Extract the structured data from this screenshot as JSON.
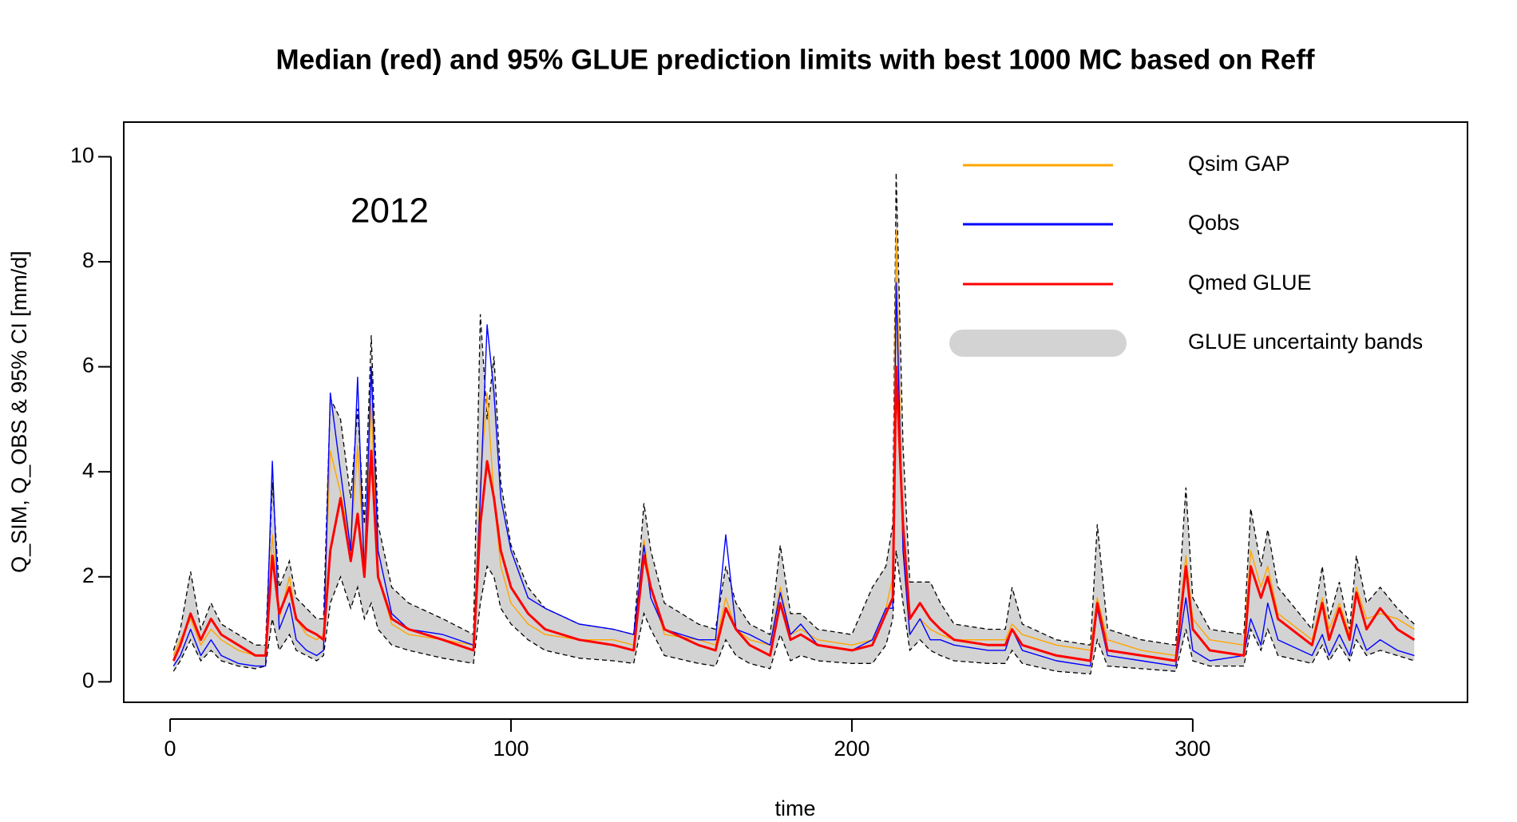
{
  "chart_data": {
    "type": "line",
    "title": "Median (red) and 95% GLUE prediction limits with best 1000 MC based on Reff",
    "x_label": "time",
    "y_label": "Q_SIM, Q_OBS & 95% CI [mm/d]",
    "annotation": "2012",
    "legend": "topright",
    "xlim": [
      -13.6,
      380.6
    ],
    "ylim": [
      -0.39,
      10.66
    ],
    "xticks": [
      0,
      100,
      200,
      300
    ],
    "yticks": [
      0,
      2,
      4,
      6,
      8,
      10
    ],
    "x": [
      1,
      3,
      6,
      9,
      12,
      15,
      20,
      25,
      28,
      30,
      32,
      35,
      37,
      40,
      43,
      45,
      47,
      50,
      53,
      55,
      57,
      59,
      61,
      65,
      70,
      80,
      89,
      91,
      93,
      95,
      97,
      100,
      105,
      110,
      120,
      130,
      136,
      139,
      141,
      145,
      155,
      160,
      163,
      166,
      170,
      176,
      179,
      182,
      185,
      190,
      200,
      206,
      210,
      212,
      213,
      215,
      217,
      220,
      223,
      226,
      230,
      240,
      245,
      247,
      250,
      260,
      270,
      272,
      275,
      285,
      295,
      298,
      300,
      305,
      315,
      317,
      320,
      322,
      325,
      335,
      338,
      340,
      343,
      346,
      348,
      351,
      355,
      360,
      365
    ],
    "series": [
      {
        "name": "Qsim GAP",
        "color": "#ffa500",
        "values": [
          0.5,
          0.8,
          1.2,
          0.7,
          1.0,
          0.8,
          0.6,
          0.5,
          0.5,
          2.8,
          1.2,
          2.0,
          1.2,
          0.9,
          0.8,
          0.9,
          4.4,
          3.6,
          2.6,
          4.5,
          2.2,
          5.3,
          2.0,
          1.1,
          0.9,
          0.8,
          0.7,
          3.8,
          5.5,
          3.5,
          2.2,
          1.5,
          1.1,
          0.9,
          0.8,
          0.8,
          0.7,
          2.7,
          1.8,
          0.9,
          0.8,
          0.7,
          1.6,
          1.0,
          0.8,
          0.7,
          1.8,
          0.9,
          1.0,
          0.8,
          0.7,
          0.8,
          1.4,
          2.0,
          8.6,
          2.5,
          0.9,
          1.2,
          1.0,
          0.9,
          0.8,
          0.8,
          0.8,
          1.1,
          0.9,
          0.7,
          0.6,
          1.6,
          0.8,
          0.6,
          0.5,
          2.4,
          1.2,
          0.8,
          0.7,
          2.5,
          1.8,
          2.2,
          1.3,
          0.8,
          1.6,
          1.0,
          1.5,
          0.9,
          1.8,
          1.2,
          1.3,
          1.2,
          1.0
        ]
      },
      {
        "name": "Qobs",
        "color": "#0000ff",
        "values": [
          0.3,
          0.5,
          1.0,
          0.5,
          0.8,
          0.5,
          0.35,
          0.3,
          0.3,
          4.2,
          1.0,
          1.5,
          0.8,
          0.6,
          0.5,
          0.6,
          5.5,
          4.0,
          2.5,
          5.8,
          2.0,
          6.0,
          2.5,
          1.3,
          1.0,
          0.9,
          0.7,
          3.5,
          6.8,
          5.5,
          3.5,
          2.5,
          1.6,
          1.4,
          1.1,
          1.0,
          0.9,
          2.6,
          1.6,
          1.0,
          0.8,
          0.8,
          2.8,
          1.0,
          0.9,
          0.7,
          1.7,
          0.9,
          1.1,
          0.7,
          0.6,
          0.8,
          1.4,
          1.4,
          7.6,
          2.5,
          0.9,
          1.2,
          0.8,
          0.8,
          0.7,
          0.6,
          0.6,
          1.0,
          0.6,
          0.4,
          0.3,
          1.4,
          0.5,
          0.4,
          0.3,
          1.6,
          0.6,
          0.4,
          0.5,
          1.2,
          0.7,
          1.5,
          0.8,
          0.5,
          0.9,
          0.5,
          0.9,
          0.5,
          1.1,
          0.6,
          0.8,
          0.6,
          0.5
        ]
      },
      {
        "name": "Qmed GLUE",
        "color": "#ff0000",
        "values": [
          0.4,
          0.7,
          1.3,
          0.8,
          1.2,
          0.9,
          0.7,
          0.5,
          0.5,
          2.4,
          1.3,
          1.8,
          1.2,
          1.0,
          0.9,
          0.8,
          2.5,
          3.5,
          2.3,
          3.2,
          2.0,
          4.4,
          2.0,
          1.2,
          1.0,
          0.8,
          0.6,
          3.0,
          4.2,
          3.5,
          2.5,
          1.8,
          1.3,
          1.0,
          0.8,
          0.7,
          0.6,
          2.4,
          1.8,
          1.0,
          0.7,
          0.6,
          1.4,
          1.0,
          0.7,
          0.5,
          1.5,
          0.8,
          0.9,
          0.7,
          0.6,
          0.7,
          1.3,
          1.6,
          6.0,
          3.0,
          1.2,
          1.5,
          1.2,
          1.0,
          0.8,
          0.7,
          0.7,
          1.0,
          0.7,
          0.5,
          0.4,
          1.5,
          0.6,
          0.5,
          0.4,
          2.2,
          1.0,
          0.6,
          0.5,
          2.2,
          1.6,
          2.0,
          1.2,
          0.7,
          1.5,
          0.8,
          1.4,
          0.8,
          1.7,
          1.0,
          1.4,
          1.0,
          0.8
        ]
      }
    ],
    "band": {
      "name": "GLUE uncertainty bands",
      "color": "#d3d3d3",
      "lower": [
        0.2,
        0.4,
        0.8,
        0.4,
        0.6,
        0.4,
        0.3,
        0.25,
        0.3,
        1.2,
        0.6,
        0.9,
        0.6,
        0.5,
        0.4,
        0.5,
        1.5,
        2.0,
        1.4,
        1.8,
        1.2,
        1.5,
        1.0,
        0.7,
        0.6,
        0.45,
        0.35,
        1.5,
        2.2,
        2.0,
        1.4,
        1.1,
        0.8,
        0.6,
        0.45,
        0.4,
        0.35,
        1.3,
        1.0,
        0.5,
        0.35,
        0.3,
        0.8,
        0.5,
        0.35,
        0.25,
        0.9,
        0.4,
        0.5,
        0.4,
        0.35,
        0.35,
        0.7,
        1.2,
        2.5,
        1.5,
        0.6,
        0.8,
        0.6,
        0.5,
        0.4,
        0.35,
        0.35,
        0.6,
        0.35,
        0.2,
        0.15,
        0.8,
        0.3,
        0.25,
        0.2,
        1.0,
        0.4,
        0.3,
        0.3,
        1.0,
        0.6,
        1.0,
        0.5,
        0.35,
        0.7,
        0.4,
        0.7,
        0.4,
        0.8,
        0.5,
        0.6,
        0.5,
        0.4
      ],
      "upper": [
        0.6,
        1.0,
        2.1,
        1.0,
        1.5,
        1.1,
        0.9,
        0.7,
        0.7,
        3.8,
        1.8,
        2.3,
        1.6,
        1.4,
        1.2,
        1.2,
        5.4,
        5.0,
        3.5,
        5.2,
        3.0,
        6.6,
        3.0,
        1.8,
        1.5,
        1.2,
        0.9,
        7.0,
        5.0,
        6.2,
        3.8,
        2.6,
        1.8,
        1.4,
        1.1,
        1.0,
        0.9,
        3.4,
        2.5,
        1.5,
        1.1,
        1.0,
        2.2,
        1.5,
        1.1,
        0.9,
        2.6,
        1.3,
        1.3,
        1.0,
        0.9,
        1.8,
        2.2,
        3.0,
        9.7,
        4.5,
        1.9,
        1.9,
        1.9,
        1.5,
        1.1,
        1.0,
        1.0,
        1.8,
        1.1,
        0.8,
        0.7,
        3.0,
        1.0,
        0.8,
        0.7,
        3.7,
        1.6,
        1.0,
        0.9,
        3.3,
        2.2,
        2.9,
        1.8,
        1.0,
        2.2,
        1.2,
        1.9,
        1.0,
        2.4,
        1.5,
        1.8,
        1.4,
        1.1
      ]
    }
  }
}
